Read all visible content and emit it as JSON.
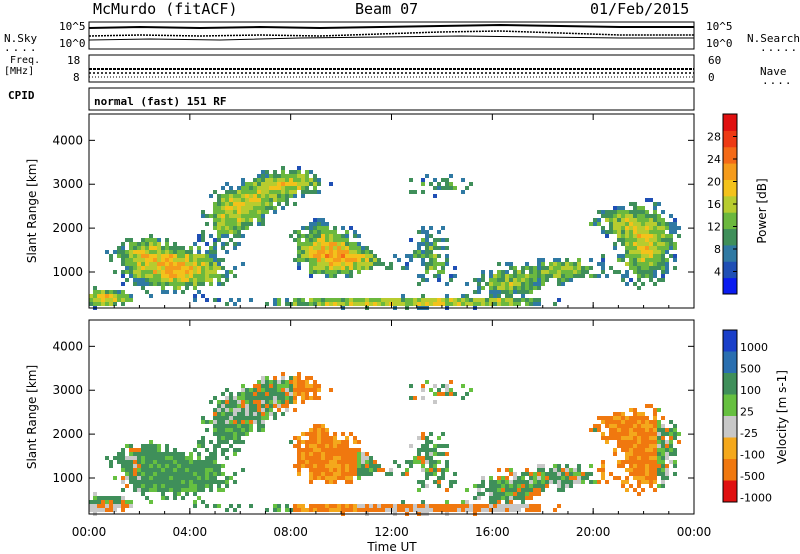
{
  "header": {
    "station": "McMurdo (fitACF)",
    "beam": "Beam 07",
    "date": "01/Feb/2015"
  },
  "top_strip": {
    "nsky_label": "N.Sky",
    "nsearch_label": "N.Search",
    "freq_label_1": "Freq.",
    "freq_label_2": "[MHz]",
    "cpid_label": "CPID",
    "nave_label": "Nave",
    "counts_top": "10^5",
    "counts_bottom": "10^0",
    "freq_top": "18",
    "freq_bottom": "8",
    "nave_top": "60",
    "nave_bottom": "0",
    "cpid_text": "normal (fast) 151 RF"
  },
  "chart_data": [
    {
      "type": "heatmap",
      "title": "",
      "ylabel": "Slant Range [km]",
      "xlabel": "",
      "ylim": [
        180,
        4600
      ],
      "xlim_hours": [
        0,
        24
      ],
      "y_ticks": [
        "1000",
        "2000",
        "3000",
        "4000"
      ],
      "x_ticks": [
        "00:00",
        "04:00",
        "08:00",
        "12:00",
        "16:00",
        "20:00",
        "00:00"
      ],
      "colorbar": {
        "label": "Power [dB]",
        "ticks": [
          "4",
          "8",
          "12",
          "16",
          "20",
          "24",
          "28"
        ],
        "colors": [
          "#0a1cf0",
          "#1f4fb5",
          "#2f79a3",
          "#3f8f5a",
          "#6bb83e",
          "#b7cc2f",
          "#f3c21b",
          "#f59b1b",
          "#f46a17",
          "#ee3a14",
          "#e01010"
        ]
      }
    },
    {
      "type": "heatmap",
      "title": "",
      "ylabel": "Slant Range [km]",
      "xlabel": "Time UT",
      "ylim": [
        180,
        4600
      ],
      "xlim_hours": [
        0,
        24
      ],
      "y_ticks": [
        "1000",
        "2000",
        "3000",
        "4000"
      ],
      "x_ticks": [
        "00:00",
        "04:00",
        "08:00",
        "12:00",
        "16:00",
        "20:00",
        "00:00"
      ],
      "colorbar": {
        "label": "Velocity [m s-1]",
        "ticks": [
          "1000",
          "500",
          "100",
          "25",
          "-25",
          "-100",
          "-500",
          "-1000"
        ],
        "colors": [
          "#1a3fc9",
          "#2a6fb0",
          "#3f8f5a",
          "#66c040",
          "#c8c8c8",
          "#f4a81c",
          "#f0780f",
          "#e01010"
        ]
      }
    }
  ],
  "colors": {
    "frame": "#000000",
    "background": "#ffffff"
  }
}
